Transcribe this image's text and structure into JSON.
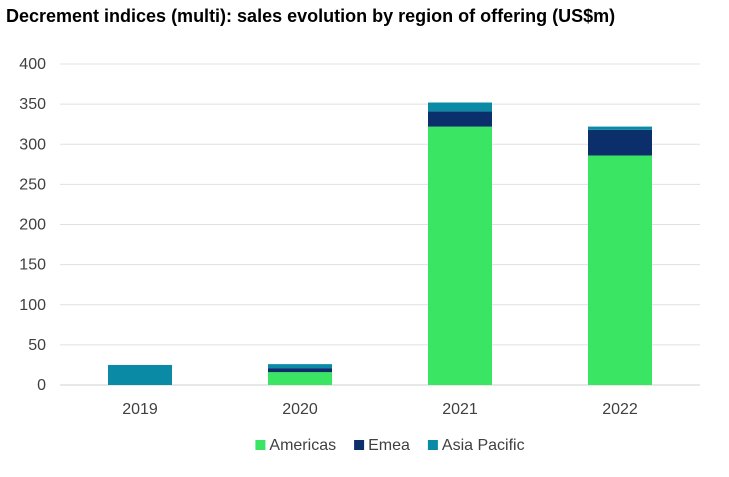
{
  "chart_data": {
    "type": "bar",
    "stacked": true,
    "title": "Decrement indices (multi): sales evolution by region of offering (US$m)",
    "categories": [
      "2019",
      "2020",
      "2021",
      "2022"
    ],
    "series": [
      {
        "name": "Americas",
        "values": [
          0,
          16,
          322,
          286
        ],
        "color": "#39e563"
      },
      {
        "name": "Emea",
        "values": [
          0,
          5,
          19,
          32
        ],
        "color": "#0a2f6b"
      },
      {
        "name": "Asia Pacific",
        "values": [
          25,
          5,
          11,
          4
        ],
        "color": "#0b8aa6"
      }
    ],
    "ylim": [
      0,
      400
    ],
    "yticks": [
      "0",
      "50",
      "100",
      "150",
      "200",
      "250",
      "300",
      "350",
      "400"
    ],
    "grid": true,
    "legend_position": "bottom"
  }
}
